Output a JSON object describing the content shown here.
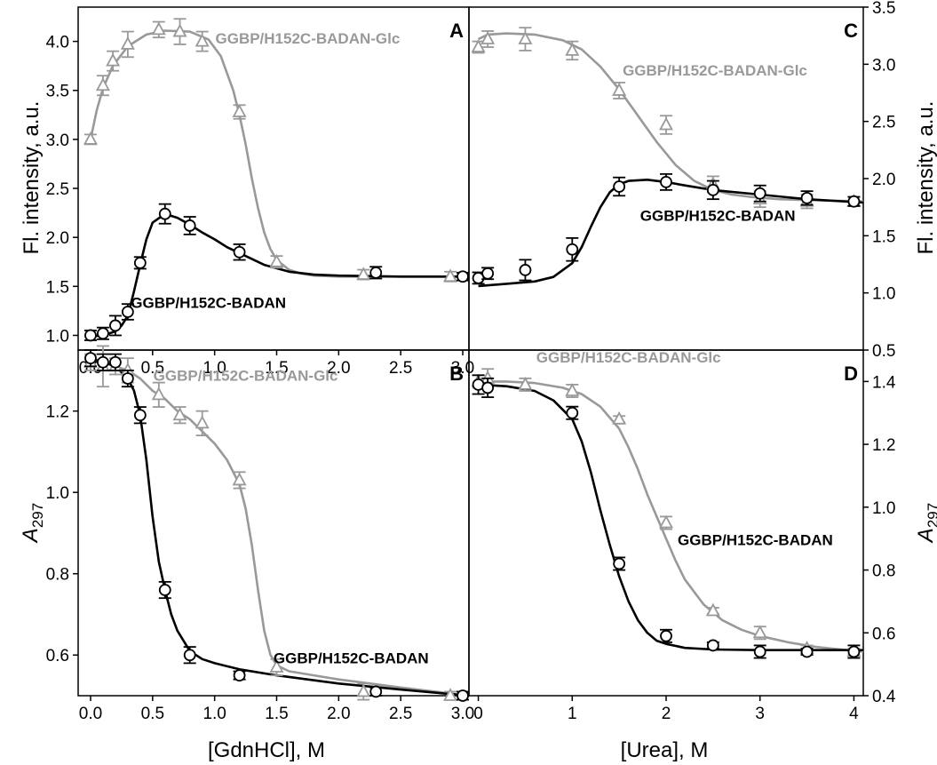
{
  "figure": {
    "x_label_left": "[GdnHCl], M",
    "x_label_right": "[Urea], M",
    "y_label_top_left": "Fl. intensity, a.u.",
    "y_label_top_right": "Fl. intensity, a.u.",
    "y_label_bottom_letter": "A",
    "y_label_bottom_sub": "297"
  },
  "colors": {
    "glc": "#999999",
    "apo": "#000000"
  },
  "chart_data": [
    {
      "panel": "A",
      "type": "scatter",
      "xlim": [
        -0.1,
        3.05
      ],
      "ylim": [
        0.85,
        4.35
      ],
      "xticks": [
        "0.0",
        "0.5",
        "1.0",
        "1.5",
        "2.0",
        "2.5",
        "3.0"
      ],
      "yticks": [
        "1.0",
        "1.5",
        "2.0",
        "2.5",
        "3.0",
        "3.5",
        "4.0"
      ],
      "y_side": "left",
      "series": [
        {
          "name": "GGBP/H152C-BADAN-Glc",
          "marker": "triangle",
          "x": [
            0.0,
            0.1,
            0.18,
            0.3,
            0.55,
            0.72,
            0.9,
            1.2,
            1.5,
            2.2,
            2.9
          ],
          "y": [
            3.0,
            3.55,
            3.8,
            3.97,
            4.12,
            4.1,
            4.0,
            3.28,
            1.75,
            1.62,
            1.6
          ],
          "err": [
            0.05,
            0.1,
            0.1,
            0.13,
            0.08,
            0.13,
            0.1,
            0.07,
            0.06,
            0.05,
            0.05
          ]
        },
        {
          "name": "GGBP/H152C-BADAN",
          "marker": "circle",
          "x": [
            0.0,
            0.1,
            0.2,
            0.3,
            0.4,
            0.6,
            0.8,
            1.2,
            2.3,
            3.0
          ],
          "y": [
            1.0,
            1.02,
            1.1,
            1.24,
            1.74,
            2.24,
            2.12,
            1.85,
            1.64,
            1.6
          ],
          "err": [
            0.05,
            0.06,
            0.1,
            0.08,
            0.06,
            0.1,
            0.09,
            0.08,
            0.06,
            0.04
          ]
        }
      ],
      "curves": [
        {
          "series": "GGBP/H152C-BADAN-Glc",
          "x": [
            0.0,
            0.05,
            0.1,
            0.18,
            0.3,
            0.45,
            0.6,
            0.8,
            0.95,
            1.05,
            1.15,
            1.2,
            1.25,
            1.3,
            1.35,
            1.4,
            1.45,
            1.5,
            1.6,
            1.7,
            1.8,
            2.0,
            2.5,
            3.05
          ],
          "y": [
            3.0,
            3.3,
            3.52,
            3.75,
            3.95,
            4.07,
            4.11,
            4.1,
            4.02,
            3.85,
            3.5,
            3.25,
            2.95,
            2.6,
            2.3,
            2.05,
            1.88,
            1.77,
            1.67,
            1.63,
            1.61,
            1.6,
            1.6,
            1.6
          ]
        },
        {
          "series": "GGBP/H152C-BADAN",
          "x": [
            0.0,
            0.1,
            0.2,
            0.25,
            0.3,
            0.35,
            0.4,
            0.45,
            0.5,
            0.6,
            0.7,
            0.8,
            0.9,
            1.0,
            1.1,
            1.2,
            1.4,
            1.6,
            1.8,
            2.0,
            2.5,
            3.05
          ],
          "y": [
            0.99,
            1.0,
            1.04,
            1.1,
            1.2,
            1.45,
            1.72,
            1.98,
            2.15,
            2.24,
            2.2,
            2.13,
            2.05,
            1.98,
            1.9,
            1.84,
            1.72,
            1.65,
            1.62,
            1.61,
            1.6,
            1.6
          ]
        }
      ],
      "labels": [
        {
          "text": "GGBP/H152C-BADAN-Glc",
          "series": "GGBP/H152C-BADAN-Glc",
          "x": 1.75,
          "y": 3.98
        },
        {
          "text": "GGBP/H152C-BADAN",
          "series": "GGBP/H152C-BADAN",
          "x": 0.95,
          "y": 1.28
        }
      ]
    },
    {
      "panel": "C",
      "type": "scatter",
      "xlim": [
        -0.1,
        4.1
      ],
      "ylim": [
        0.5,
        3.5
      ],
      "xticks": [],
      "yticks": [
        "0.5",
        "1.0",
        "1.5",
        "2.0",
        "2.5",
        "3.0",
        "3.5"
      ],
      "y_side": "right",
      "series": [
        {
          "name": "GGBP/H152C-BADAN-Glc",
          "marker": "triangle",
          "x": [
            0.0,
            0.1,
            0.5,
            1.0,
            1.5,
            2.0,
            2.5,
            3.0,
            3.5,
            4.0
          ],
          "y": [
            3.15,
            3.22,
            3.22,
            3.12,
            2.77,
            2.47,
            1.95,
            1.82,
            1.8,
            1.8
          ],
          "err": [
            0.05,
            0.07,
            0.1,
            0.08,
            0.07,
            0.08,
            0.07,
            0.07,
            0.06,
            0.04
          ]
        },
        {
          "name": "GGBP/H152C-BADAN",
          "marker": "circle",
          "x": [
            0.0,
            0.1,
            0.5,
            1.0,
            1.5,
            2.0,
            2.5,
            3.0,
            3.5,
            4.0
          ],
          "y": [
            1.13,
            1.17,
            1.2,
            1.38,
            1.93,
            1.97,
            1.9,
            1.87,
            1.83,
            1.8
          ],
          "err": [
            0.05,
            0.05,
            0.09,
            0.1,
            0.08,
            0.07,
            0.08,
            0.07,
            0.06,
            0.04
          ]
        }
      ],
      "curves": [
        {
          "series": "GGBP/H152C-BADAN-Glc",
          "x": [
            0.0,
            0.1,
            0.3,
            0.6,
            0.9,
            1.1,
            1.3,
            1.5,
            1.7,
            1.9,
            2.1,
            2.3,
            2.5,
            2.7,
            2.9,
            3.2,
            3.6,
            4.1
          ],
          "y": [
            3.22,
            3.26,
            3.27,
            3.26,
            3.21,
            3.13,
            2.98,
            2.78,
            2.55,
            2.32,
            2.12,
            1.98,
            1.9,
            1.86,
            1.84,
            1.82,
            1.81,
            1.8
          ]
        },
        {
          "series": "GGBP/H152C-BADAN",
          "x": [
            0.0,
            0.3,
            0.6,
            0.8,
            1.0,
            1.1,
            1.2,
            1.3,
            1.4,
            1.5,
            1.6,
            1.8,
            2.0,
            2.2,
            2.5,
            3.0,
            3.5,
            4.1
          ],
          "y": [
            1.06,
            1.08,
            1.1,
            1.14,
            1.26,
            1.4,
            1.58,
            1.75,
            1.88,
            1.95,
            1.98,
            1.99,
            1.97,
            1.94,
            1.9,
            1.86,
            1.82,
            1.79
          ]
        }
      ],
      "labels": [
        {
          "text": "GGBP/H152C-BADAN-Glc",
          "series": "GGBP/H152C-BADAN-Glc",
          "x": 2.52,
          "y": 2.9
        },
        {
          "text": "GGBP/H152C-BADAN",
          "series": "GGBP/H152C-BADAN",
          "x": 2.55,
          "y": 1.63
        }
      ]
    },
    {
      "panel": "B",
      "type": "scatter",
      "xlim": [
        -0.1,
        3.05
      ],
      "ylim": [
        0.5,
        1.35
      ],
      "xticks": [
        "0.0",
        "0.5",
        "1.0",
        "1.5",
        "2.0",
        "2.5",
        "3.0"
      ],
      "yticks": [
        "0.6",
        "0.8",
        "1.0",
        "1.2"
      ],
      "y_side": "left",
      "series": [
        {
          "name": "GGBP/H152C-BADAN-Glc",
          "marker": "triangle",
          "x": [
            0.0,
            0.1,
            0.2,
            0.3,
            0.55,
            0.72,
            0.9,
            1.2,
            1.5,
            2.2,
            2.9
          ],
          "y": [
            1.32,
            1.31,
            1.31,
            1.3,
            1.24,
            1.19,
            1.17,
            1.03,
            0.57,
            0.51,
            0.5
          ],
          "err": [
            0.02,
            0.05,
            0.02,
            0.03,
            0.03,
            0.02,
            0.03,
            0.02,
            0.02,
            0.02,
            0.01
          ]
        },
        {
          "name": "GGBP/H152C-BADAN",
          "marker": "circle",
          "x": [
            0.0,
            0.1,
            0.2,
            0.3,
            0.4,
            0.6,
            0.8,
            1.2,
            2.3,
            3.0
          ],
          "y": [
            1.33,
            1.32,
            1.32,
            1.28,
            1.19,
            0.76,
            0.6,
            0.55,
            0.51,
            0.5
          ],
          "err": [
            0.02,
            0.02,
            0.02,
            0.02,
            0.02,
            0.02,
            0.02,
            0.01,
            0.01,
            0.01
          ]
        }
      ],
      "curves": [
        {
          "series": "GGBP/H152C-BADAN-Glc",
          "x": [
            0.0,
            0.1,
            0.2,
            0.3,
            0.4,
            0.5,
            0.6,
            0.7,
            0.8,
            0.9,
            1.0,
            1.1,
            1.2,
            1.25,
            1.3,
            1.35,
            1.4,
            1.45,
            1.5,
            1.6,
            1.8,
            2.0,
            2.5,
            3.05
          ],
          "y": [
            1.33,
            1.32,
            1.31,
            1.3,
            1.28,
            1.25,
            1.23,
            1.2,
            1.18,
            1.15,
            1.12,
            1.08,
            1.02,
            0.96,
            0.87,
            0.76,
            0.66,
            0.6,
            0.575,
            0.56,
            0.55,
            0.54,
            0.52,
            0.5
          ]
        },
        {
          "series": "GGBP/H152C-BADAN",
          "x": [
            0.0,
            0.1,
            0.2,
            0.3,
            0.35,
            0.4,
            0.45,
            0.5,
            0.55,
            0.6,
            0.65,
            0.7,
            0.8,
            0.9,
            1.0,
            1.2,
            1.5,
            2.0,
            2.5,
            3.05
          ],
          "y": [
            1.33,
            1.32,
            1.31,
            1.28,
            1.25,
            1.19,
            1.08,
            0.94,
            0.83,
            0.76,
            0.7,
            0.66,
            0.61,
            0.59,
            0.58,
            0.565,
            0.55,
            0.53,
            0.515,
            0.5
          ]
        }
      ],
      "labels": [
        {
          "text": "GGBP/H152C-BADAN-Glc",
          "series": "GGBP/H152C-BADAN-Glc",
          "x": 1.25,
          "y": 1.275
        },
        {
          "text": "GGBP/H152C-BADAN",
          "series": "GGBP/H152C-BADAN",
          "x": 2.1,
          "y": 0.58
        }
      ]
    },
    {
      "panel": "D",
      "type": "scatter",
      "xlim": [
        -0.1,
        4.1
      ],
      "ylim": [
        0.4,
        1.5
      ],
      "xticks": [
        "0",
        "1",
        "2",
        "3",
        "4"
      ],
      "yticks": [
        "0.4",
        "0.6",
        "0.8",
        "1.0",
        "1.2",
        "1.4"
      ],
      "y_side": "right",
      "series": [
        {
          "name": "GGBP/H152C-BADAN-Glc",
          "marker": "triangle",
          "x": [
            0.0,
            0.1,
            0.5,
            1.0,
            1.5,
            2.0,
            2.5,
            3.0,
            3.5,
            4.0
          ],
          "y": [
            1.4,
            1.41,
            1.39,
            1.37,
            1.28,
            0.95,
            0.67,
            0.6,
            0.55,
            0.54
          ],
          "err": [
            0.02,
            0.03,
            0.02,
            0.02,
            0.01,
            0.02,
            0.01,
            0.02,
            0.01,
            0.01
          ]
        },
        {
          "name": "GGBP/H152C-BADAN",
          "marker": "circle",
          "x": [
            0.0,
            0.1,
            1.0,
            1.5,
            2.0,
            2.5,
            3.0,
            3.5,
            4.0
          ],
          "y": [
            1.39,
            1.38,
            1.3,
            0.82,
            0.59,
            0.56,
            0.54,
            0.54,
            0.54
          ],
          "err": [
            0.03,
            0.03,
            0.02,
            0.02,
            0.02,
            0.01,
            0.02,
            0.01,
            0.02
          ]
        }
      ],
      "curves": [
        {
          "series": "GGBP/H152C-BADAN-Glc",
          "x": [
            0.0,
            0.3,
            0.6,
            0.9,
            1.1,
            1.3,
            1.5,
            1.6,
            1.7,
            1.8,
            1.9,
            2.0,
            2.1,
            2.2,
            2.4,
            2.6,
            2.8,
            3.0,
            3.3,
            3.6,
            4.1
          ],
          "y": [
            1.4,
            1.4,
            1.395,
            1.38,
            1.36,
            1.32,
            1.25,
            1.19,
            1.12,
            1.04,
            0.97,
            0.9,
            0.83,
            0.77,
            0.69,
            0.64,
            0.61,
            0.59,
            0.57,
            0.555,
            0.54
          ]
        },
        {
          "series": "GGBP/H152C-BADAN",
          "x": [
            0.0,
            0.3,
            0.6,
            0.8,
            1.0,
            1.1,
            1.2,
            1.3,
            1.4,
            1.5,
            1.6,
            1.7,
            1.8,
            1.9,
            2.0,
            2.2,
            2.5,
            3.0,
            4.1
          ],
          "y": [
            1.39,
            1.385,
            1.37,
            1.34,
            1.28,
            1.21,
            1.11,
            0.99,
            0.88,
            0.78,
            0.7,
            0.64,
            0.6,
            0.575,
            0.565,
            0.552,
            0.547,
            0.545,
            0.545
          ]
        }
      ],
      "labels": [
        {
          "text": "GGBP/H152C-BADAN-Glc",
          "series": "GGBP/H152C-BADAN-Glc",
          "x": 1.6,
          "y": 1.46
        },
        {
          "text": "GGBP/H152C-BADAN",
          "series": "GGBP/H152C-BADAN",
          "x": 2.95,
          "y": 0.88
        }
      ]
    }
  ]
}
